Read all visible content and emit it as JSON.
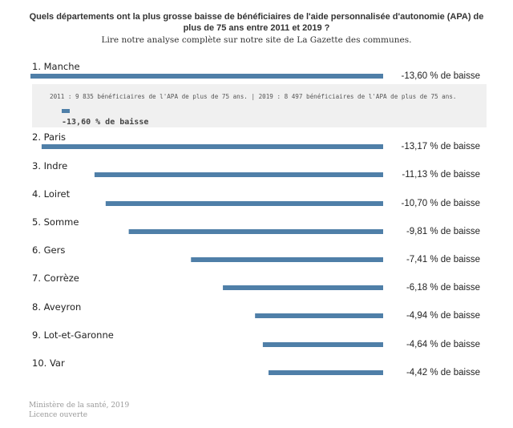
{
  "title": "Quels départements ont la plus grosse baisse de bénéficiaires de l'aide personnalisée d'autonomie (APA) de plus de 75 ans entre 2011 et 2019 ?",
  "subtitle": "Lire notre analyse complète sur notre site de La Gazette des communes.",
  "colors": {
    "bar": "#4f7fa8",
    "annotation_bg": "#f0f0f0"
  },
  "chart_data": {
    "type": "bar",
    "orientation": "horizontal",
    "categories": [
      "1. Manche",
      "2. Paris",
      "3. Indre",
      "4. Loiret",
      "5. Somme",
      "6. Gers",
      "7. Corrèze",
      "8. Aveyron",
      "9. Lot-et-Garonne",
      "10. Var"
    ],
    "values": [
      13.6,
      13.17,
      11.13,
      10.7,
      9.81,
      7.41,
      6.18,
      4.94,
      4.64,
      4.42
    ],
    "value_labels": [
      "-13,60 % de baisse",
      "-13,17 % de baisse",
      "-11,13 % de baisse",
      "-10,70 % de baisse",
      "-9,81 % de baisse",
      "-7,41 % de baisse",
      "-6,18 % de baisse",
      "-4,94 % de baisse",
      "-4,64 % de baisse",
      "-4,42 % de baisse"
    ],
    "xlim": [
      0,
      13.6
    ],
    "bar_direction": "right-aligned",
    "annotation": {
      "text": "2011 : 9 835 bénéficiaires de l'APA de plus de 75 ans. | 2019 : 8 497 bénéficiaires de l'APA de plus de 75 ans.",
      "label": "-13,60 % de baisse"
    }
  },
  "footer": {
    "source": "Ministère de la santé, 2019",
    "licence": "Licence ouverte"
  }
}
